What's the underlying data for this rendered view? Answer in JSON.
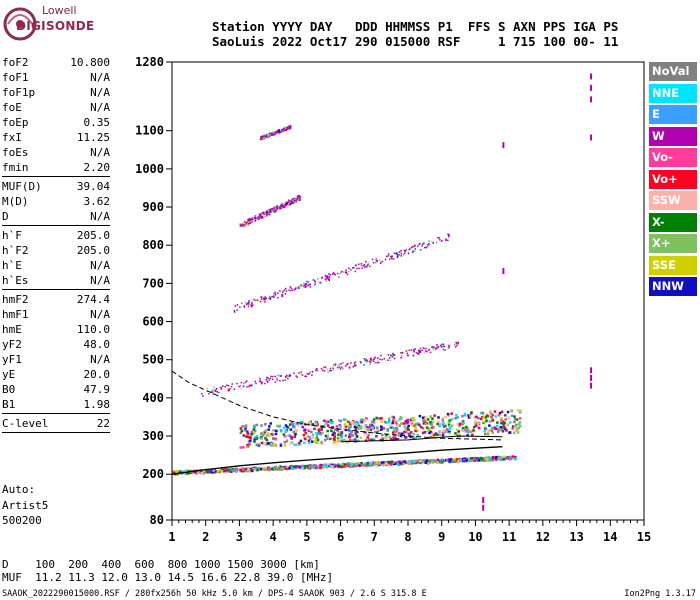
{
  "logo": {
    "line1": "Lowell",
    "line2": "DIGISONDE"
  },
  "header": {
    "line1": "Station YYYY DAY   DDD HHMMSS P1  FFS S AXN PPS IGA PS",
    "line2": "SaoLuis 2022 Oct17 290 015000 RSF     1 715 100 00- 11"
  },
  "params": [
    {
      "k": "foF2",
      "v": "10.800"
    },
    {
      "k": "foF1",
      "v": "N/A"
    },
    {
      "k": "foF1p",
      "v": "N/A"
    },
    {
      "k": "foE",
      "v": "N/A"
    },
    {
      "k": "foEp",
      "v": "0.35"
    },
    {
      "k": "fxI",
      "v": "11.25"
    },
    {
      "k": "foEs",
      "v": "N/A"
    },
    {
      "k": "fmin",
      "v": "2.20"
    },
    {
      "sep": true
    },
    {
      "k": "MUF(D)",
      "v": "39.04"
    },
    {
      "k": "M(D)",
      "v": "3.62"
    },
    {
      "k": "D",
      "v": "N/A"
    },
    {
      "sep": true
    },
    {
      "k": "h`F",
      "v": "205.0"
    },
    {
      "k": "h`F2",
      "v": "205.0"
    },
    {
      "k": "h`E",
      "v": "N/A"
    },
    {
      "k": "h`Es",
      "v": "N/A"
    },
    {
      "sep": true
    },
    {
      "k": "hmF2",
      "v": "274.4"
    },
    {
      "k": "hmF1",
      "v": "N/A"
    },
    {
      "k": "hmE",
      "v": "110.0"
    },
    {
      "k": "yF2",
      "v": "48.0"
    },
    {
      "k": "yF1",
      "v": "N/A"
    },
    {
      "k": "yE",
      "v": "20.0"
    },
    {
      "k": "B0",
      "v": "47.9"
    },
    {
      "k": "B1",
      "v": "1.98"
    },
    {
      "sep": true
    },
    {
      "k": "C-level",
      "v": "22"
    },
    {
      "sep": true
    }
  ],
  "auto": {
    "line1": "Auto:",
    "line2": "Artist5",
    "line3": "500200"
  },
  "legend": [
    {
      "label": "NoVal",
      "color": "#808080"
    },
    {
      "label": "NNE",
      "color": "#00e5ff"
    },
    {
      "label": "E",
      "color": "#3aa0ff"
    },
    {
      "label": "W",
      "color": "#b000b0"
    },
    {
      "label": "Vo-",
      "color": "#ff3c9c"
    },
    {
      "label": "Vo+",
      "color": "#ff0020"
    },
    {
      "label": "SSW",
      "color": "#ffb0a8"
    },
    {
      "label": "X-",
      "color": "#008000"
    },
    {
      "label": "X+",
      "color": "#80c060"
    },
    {
      "label": "SSE",
      "color": "#d0d000"
    },
    {
      "label": "NNW",
      "color": "#1010c0"
    }
  ],
  "chart_data": {
    "type": "scatter",
    "x_axis": {
      "range": [
        1,
        15
      ],
      "ticks": [
        "1",
        "2",
        "3",
        "4",
        "5",
        "6",
        "7",
        "8",
        "9",
        "10",
        "11",
        "12",
        "13",
        "14",
        "15"
      ]
    },
    "y_axis": {
      "range": [
        80,
        1280
      ],
      "ticks": [
        "80",
        "200",
        "300",
        "400",
        "500",
        "600",
        "700",
        "800",
        "900",
        "1000",
        "1100",
        "1280"
      ]
    },
    "traces": {
      "o_trace": [
        [
          1.0,
          200
        ],
        [
          2.0,
          212
        ],
        [
          3.0,
          222
        ],
        [
          4.0,
          230
        ],
        [
          5.0,
          237
        ],
        [
          6.0,
          243
        ],
        [
          7.0,
          250
        ],
        [
          8.0,
          256
        ],
        [
          9.0,
          263
        ],
        [
          10.0,
          268
        ],
        [
          10.8,
          272
        ]
      ],
      "profile_upper": [
        [
          1.0,
          470
        ],
        [
          1.5,
          440
        ],
        [
          2.0,
          420
        ],
        [
          3.0,
          380
        ],
        [
          4.0,
          350
        ],
        [
          5.0,
          330
        ],
        [
          6.0,
          318
        ],
        [
          7.0,
          308
        ],
        [
          8.0,
          300
        ],
        [
          9.0,
          294
        ],
        [
          10.0,
          292
        ],
        [
          10.8,
          290
        ]
      ],
      "profile_lower": [
        [
          6.0,
          285
        ],
        [
          8.0,
          290
        ],
        [
          9.5,
          300
        ],
        [
          10.8,
          298
        ]
      ]
    },
    "echo_bands": [
      {
        "x0": 1.0,
        "x1": 11.2,
        "y0": 205,
        "y1": 245,
        "dy": 8
      },
      {
        "x0": 3.0,
        "x1": 11.3,
        "y0": 290,
        "y1": 330,
        "dy": 60
      },
      {
        "x0": 1.8,
        "x1": 9.5,
        "y0": 410,
        "y1": 540,
        "dy": 18
      },
      {
        "x0": 2.8,
        "x1": 9.2,
        "y0": 630,
        "y1": 820,
        "dy": 18
      },
      {
        "x0": 3.0,
        "x1": 4.8,
        "y0": 850,
        "y1": 925,
        "dy": 14
      },
      {
        "x0": 3.6,
        "x1": 4.5,
        "y0": 1080,
        "y1": 1110,
        "dy": 8
      }
    ],
    "mode_names": [
      "NoVal",
      "NNE",
      "E",
      "W",
      "Vo-",
      "Vo+",
      "SSW",
      "X-",
      "X+",
      "SSE",
      "NNW"
    ]
  },
  "muf": {
    "d_row": "D    100  200  400  600  800 1000 1500 3000 [km]",
    "muf_row": "MUF  11.2 11.3 12.0 13.0 14.5 16.6 22.8 39.0 [MHz]"
  },
  "footer": {
    "left": "SAAOK_2022290015000.RSF / 280fx256h 50 kHz 5.0 km / DPS-4 SAAOK 903 / 2.6 S 315.8 E",
    "right": "Ion2Png 1.3.17"
  }
}
